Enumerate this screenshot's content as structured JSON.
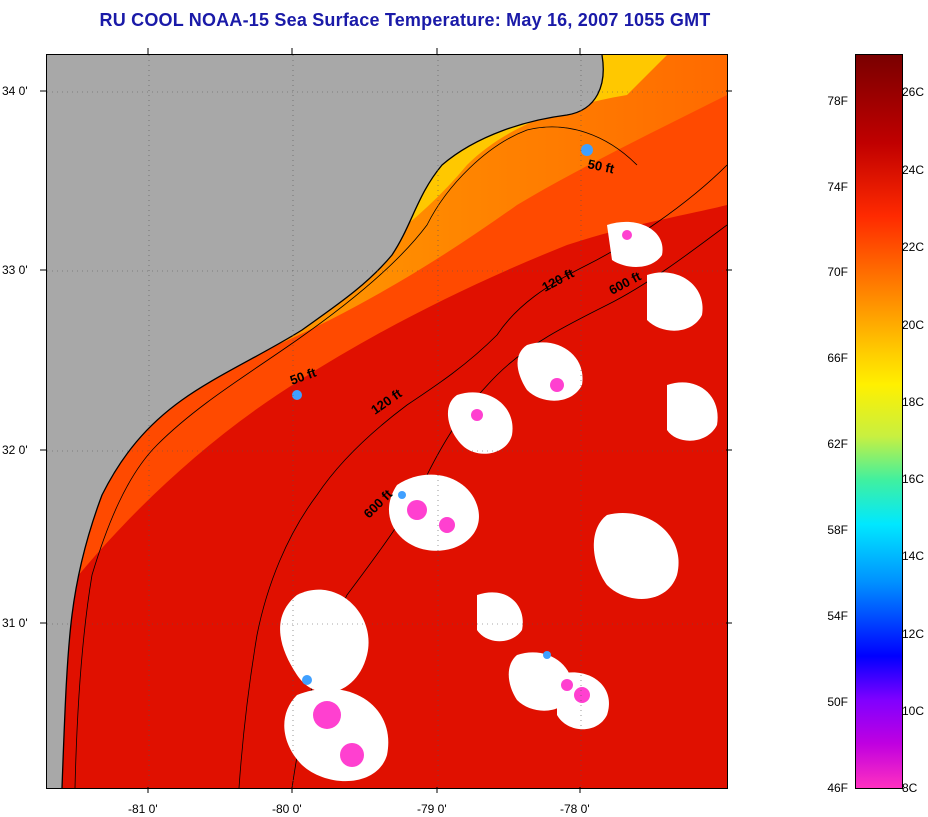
{
  "title": "RU COOL  NOAA-15  Sea Surface Temperature:  May 16, 2007 1055 GMT",
  "map": {
    "lat_ticks": [
      {
        "label": "34 0'",
        "lat": 34.0
      },
      {
        "label": "33 0'",
        "lat": 33.0
      },
      {
        "label": "32 0'",
        "lat": 32.0
      },
      {
        "label": "31 0'",
        "lat": 31.0
      }
    ],
    "lon_ticks": [
      {
        "label": "-81 0'",
        "lon": -81.0
      },
      {
        "label": "-80 0'",
        "lon": -80.0
      },
      {
        "label": "-79 0'",
        "lon": -79.0
      },
      {
        "label": "-78 0'",
        "lon": -78.0
      }
    ],
    "isobath_labels": [
      {
        "text": "50 ft",
        "id": "isobath-50ft-north"
      },
      {
        "text": "120 ft",
        "id": "isobath-120ft-north"
      },
      {
        "text": "600 ft",
        "id": "isobath-600ft-north"
      },
      {
        "text": "50 ft",
        "id": "isobath-50ft-south"
      },
      {
        "text": "120 ft",
        "id": "isobath-120ft-south"
      },
      {
        "text": "600 ft",
        "id": "isobath-600ft-south"
      }
    ],
    "colors": {
      "land": "#a8a8a8",
      "cloud": "#ffffff",
      "nearshore": "#ffc000",
      "shelf": "#ff8a00",
      "midshelf": "#ff3a00",
      "gulfstream": "#d40000",
      "contour": "#000000"
    }
  },
  "colorbar": {
    "fahrenheit": [
      "78F",
      "74F",
      "70F",
      "66F",
      "62F",
      "58F",
      "54F",
      "50F",
      "46F"
    ],
    "celsius": [
      "26C",
      "24C",
      "22C",
      "20C",
      "18C",
      "16C",
      "14C",
      "12C",
      "10C",
      "8C"
    ]
  }
}
